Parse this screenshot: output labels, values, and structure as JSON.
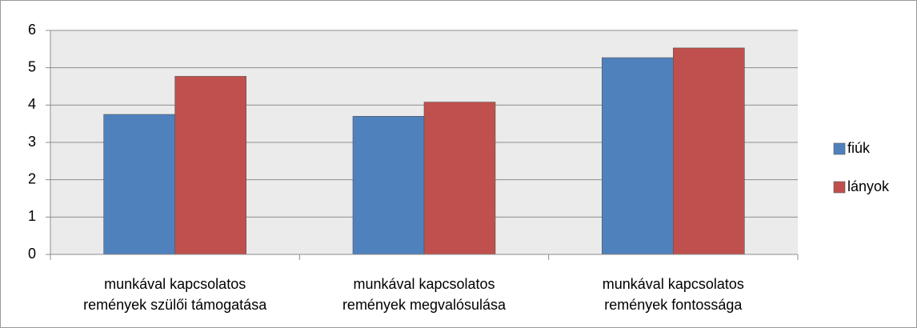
{
  "chart_data": {
    "type": "bar",
    "categories": [
      "munkával kapcsolatos\nremények szülői támogatása",
      "munkával kapcsolatos\nremények megvalósulása",
      "munkával kapcsolatos\nremények fontossága"
    ],
    "series": [
      {
        "name": "fiúk",
        "color": "#4f81bd",
        "values": [
          3.75,
          3.7,
          5.27
        ]
      },
      {
        "name": "lányok",
        "color": "#c0504d",
        "values": [
          4.77,
          4.08,
          5.53
        ]
      }
    ],
    "ylim": [
      0,
      6
    ],
    "yticks": [
      0,
      1,
      2,
      3,
      4,
      5,
      6
    ],
    "grid": true,
    "legend": "right"
  }
}
